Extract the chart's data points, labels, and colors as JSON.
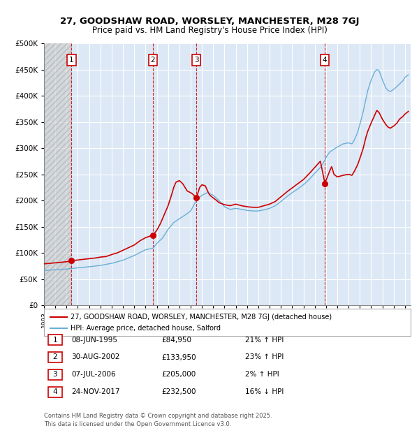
{
  "title_line1": "27, GOODSHAW ROAD, WORSLEY, MANCHESTER, M28 7GJ",
  "title_line2": "Price paid vs. HM Land Registry's House Price Index (HPI)",
  "ylabel_ticks": [
    "£0",
    "£50K",
    "£100K",
    "£150K",
    "£200K",
    "£250K",
    "£300K",
    "£350K",
    "£400K",
    "£450K",
    "£500K"
  ],
  "ytick_values": [
    0,
    50000,
    100000,
    150000,
    200000,
    250000,
    300000,
    350000,
    400000,
    450000,
    500000
  ],
  "xlim_start": 1993.0,
  "xlim_end": 2025.5,
  "ylim_min": 0,
  "ylim_max": 500000,
  "hpi_color": "#6baed6",
  "price_color": "#cc0000",
  "background_color": "#ffffff",
  "plot_bg_color": "#dce8f5",
  "grid_color": "#ffffff",
  "sale_points": [
    {
      "date_num": 1995.44,
      "price": 84950,
      "label": "1"
    },
    {
      "date_num": 2002.66,
      "price": 133950,
      "label": "2"
    },
    {
      "date_num": 2006.51,
      "price": 205000,
      "label": "3"
    },
    {
      "date_num": 2017.9,
      "price": 232500,
      "label": "4"
    }
  ],
  "legend_line1": "27, GOODSHAW ROAD, WORSLEY, MANCHESTER, M28 7GJ (detached house)",
  "legend_line2": "HPI: Average price, detached house, Salford",
  "table_rows": [
    {
      "num": "1",
      "date": "08-JUN-1995",
      "price": "£84,950",
      "hpi": "21% ↑ HPI"
    },
    {
      "num": "2",
      "date": "30-AUG-2002",
      "price": "£133,950",
      "hpi": "23% ↑ HPI"
    },
    {
      "num": "3",
      "date": "07-JUL-2006",
      "price": "£205,000",
      "hpi": "2% ↑ HPI"
    },
    {
      "num": "4",
      "date": "24-NOV-2017",
      "price": "£232,500",
      "hpi": "16% ↓ HPI"
    }
  ],
  "footnote": "Contains HM Land Registry data © Crown copyright and database right 2025.\nThis data is licensed under the Open Government Licence v3.0.",
  "hpi_anchors": [
    [
      1993.0,
      66000
    ],
    [
      1994.0,
      68000
    ],
    [
      1995.0,
      69000
    ],
    [
      1995.44,
      70200
    ],
    [
      1996.0,
      71500
    ],
    [
      1997.0,
      73500
    ],
    [
      1998.0,
      76000
    ],
    [
      1999.0,
      80000
    ],
    [
      2000.0,
      86000
    ],
    [
      2001.0,
      95000
    ],
    [
      2002.0,
      106000
    ],
    [
      2002.66,
      108900
    ],
    [
      2003.0,
      118000
    ],
    [
      2003.5,
      128000
    ],
    [
      2004.0,
      145000
    ],
    [
      2004.5,
      158000
    ],
    [
      2005.0,
      165000
    ],
    [
      2005.5,
      172000
    ],
    [
      2006.0,
      180000
    ],
    [
      2006.51,
      200000
    ],
    [
      2007.0,
      210000
    ],
    [
      2007.5,
      215000
    ],
    [
      2008.0,
      210000
    ],
    [
      2008.5,
      200000
    ],
    [
      2009.0,
      188000
    ],
    [
      2009.5,
      183000
    ],
    [
      2010.0,
      185000
    ],
    [
      2010.5,
      183000
    ],
    [
      2011.0,
      181000
    ],
    [
      2011.5,
      180000
    ],
    [
      2012.0,
      180000
    ],
    [
      2012.5,
      182000
    ],
    [
      2013.0,
      185000
    ],
    [
      2013.5,
      190000
    ],
    [
      2014.0,
      198000
    ],
    [
      2014.5,
      207000
    ],
    [
      2015.0,
      215000
    ],
    [
      2015.5,
      222000
    ],
    [
      2016.0,
      230000
    ],
    [
      2016.5,
      240000
    ],
    [
      2017.0,
      252000
    ],
    [
      2017.5,
      263000
    ],
    [
      2017.9,
      276800
    ],
    [
      2018.0,
      282000
    ],
    [
      2018.3,
      292000
    ],
    [
      2018.5,
      295000
    ],
    [
      2018.7,
      298000
    ],
    [
      2019.0,
      302000
    ],
    [
      2019.5,
      308000
    ],
    [
      2020.0,
      310000
    ],
    [
      2020.3,
      308000
    ],
    [
      2020.5,
      315000
    ],
    [
      2020.8,
      330000
    ],
    [
      2021.0,
      345000
    ],
    [
      2021.3,
      370000
    ],
    [
      2021.5,
      390000
    ],
    [
      2021.7,
      410000
    ],
    [
      2022.0,
      430000
    ],
    [
      2022.3,
      445000
    ],
    [
      2022.5,
      450000
    ],
    [
      2022.7,
      448000
    ],
    [
      2023.0,
      430000
    ],
    [
      2023.3,
      415000
    ],
    [
      2023.5,
      410000
    ],
    [
      2023.7,
      408000
    ],
    [
      2024.0,
      412000
    ],
    [
      2024.3,
      418000
    ],
    [
      2024.5,
      422000
    ],
    [
      2024.8,
      428000
    ],
    [
      2025.0,
      435000
    ],
    [
      2025.3,
      440000
    ]
  ],
  "prop_anchors": [
    [
      1993.0,
      79000
    ],
    [
      1994.0,
      81000
    ],
    [
      1995.0,
      83000
    ],
    [
      1995.44,
      84950
    ],
    [
      1996.0,
      86500
    ],
    [
      1997.0,
      89000
    ],
    [
      1997.5,
      90000
    ],
    [
      1998.0,
      92000
    ],
    [
      1998.5,
      93000
    ],
    [
      1999.0,
      97000
    ],
    [
      1999.5,
      100000
    ],
    [
      2000.0,
      105000
    ],
    [
      2000.5,
      110000
    ],
    [
      2001.0,
      115000
    ],
    [
      2001.5,
      123000
    ],
    [
      2002.0,
      129000
    ],
    [
      2002.66,
      133950
    ],
    [
      2003.0,
      143000
    ],
    [
      2003.3,
      155000
    ],
    [
      2003.5,
      165000
    ],
    [
      2003.7,
      175000
    ],
    [
      2004.0,
      190000
    ],
    [
      2004.3,
      210000
    ],
    [
      2004.5,
      225000
    ],
    [
      2004.7,
      235000
    ],
    [
      2005.0,
      238000
    ],
    [
      2005.3,
      232000
    ],
    [
      2005.5,
      225000
    ],
    [
      2005.7,
      218000
    ],
    [
      2006.0,
      215000
    ],
    [
      2006.2,
      212000
    ],
    [
      2006.51,
      205000
    ],
    [
      2006.8,
      225000
    ],
    [
      2007.0,
      230000
    ],
    [
      2007.3,
      228000
    ],
    [
      2007.5,
      218000
    ],
    [
      2007.7,
      210000
    ],
    [
      2008.0,
      205000
    ],
    [
      2008.3,
      200000
    ],
    [
      2008.5,
      196000
    ],
    [
      2009.0,
      192000
    ],
    [
      2009.5,
      190000
    ],
    [
      2010.0,
      193000
    ],
    [
      2010.5,
      190000
    ],
    [
      2011.0,
      188000
    ],
    [
      2011.5,
      187000
    ],
    [
      2012.0,
      187000
    ],
    [
      2012.5,
      190000
    ],
    [
      2013.0,
      193000
    ],
    [
      2013.5,
      198000
    ],
    [
      2014.0,
      207000
    ],
    [
      2014.5,
      216000
    ],
    [
      2015.0,
      224000
    ],
    [
      2015.5,
      232000
    ],
    [
      2016.0,
      240000
    ],
    [
      2016.5,
      251000
    ],
    [
      2017.0,
      263000
    ],
    [
      2017.5,
      275000
    ],
    [
      2017.9,
      232500
    ],
    [
      2018.0,
      238000
    ],
    [
      2018.3,
      255000
    ],
    [
      2018.5,
      265000
    ],
    [
      2018.7,
      250000
    ],
    [
      2019.0,
      245000
    ],
    [
      2019.5,
      248000
    ],
    [
      2020.0,
      250000
    ],
    [
      2020.3,
      248000
    ],
    [
      2020.5,
      255000
    ],
    [
      2020.8,
      268000
    ],
    [
      2021.0,
      280000
    ],
    [
      2021.3,
      300000
    ],
    [
      2021.5,
      318000
    ],
    [
      2021.7,
      332000
    ],
    [
      2022.0,
      348000
    ],
    [
      2022.3,
      362000
    ],
    [
      2022.5,
      372000
    ],
    [
      2022.7,
      368000
    ],
    [
      2023.0,
      355000
    ],
    [
      2023.3,
      345000
    ],
    [
      2023.5,
      340000
    ],
    [
      2023.7,
      338000
    ],
    [
      2024.0,
      342000
    ],
    [
      2024.3,
      348000
    ],
    [
      2024.5,
      355000
    ],
    [
      2024.8,
      360000
    ],
    [
      2025.0,
      365000
    ],
    [
      2025.3,
      370000
    ]
  ]
}
